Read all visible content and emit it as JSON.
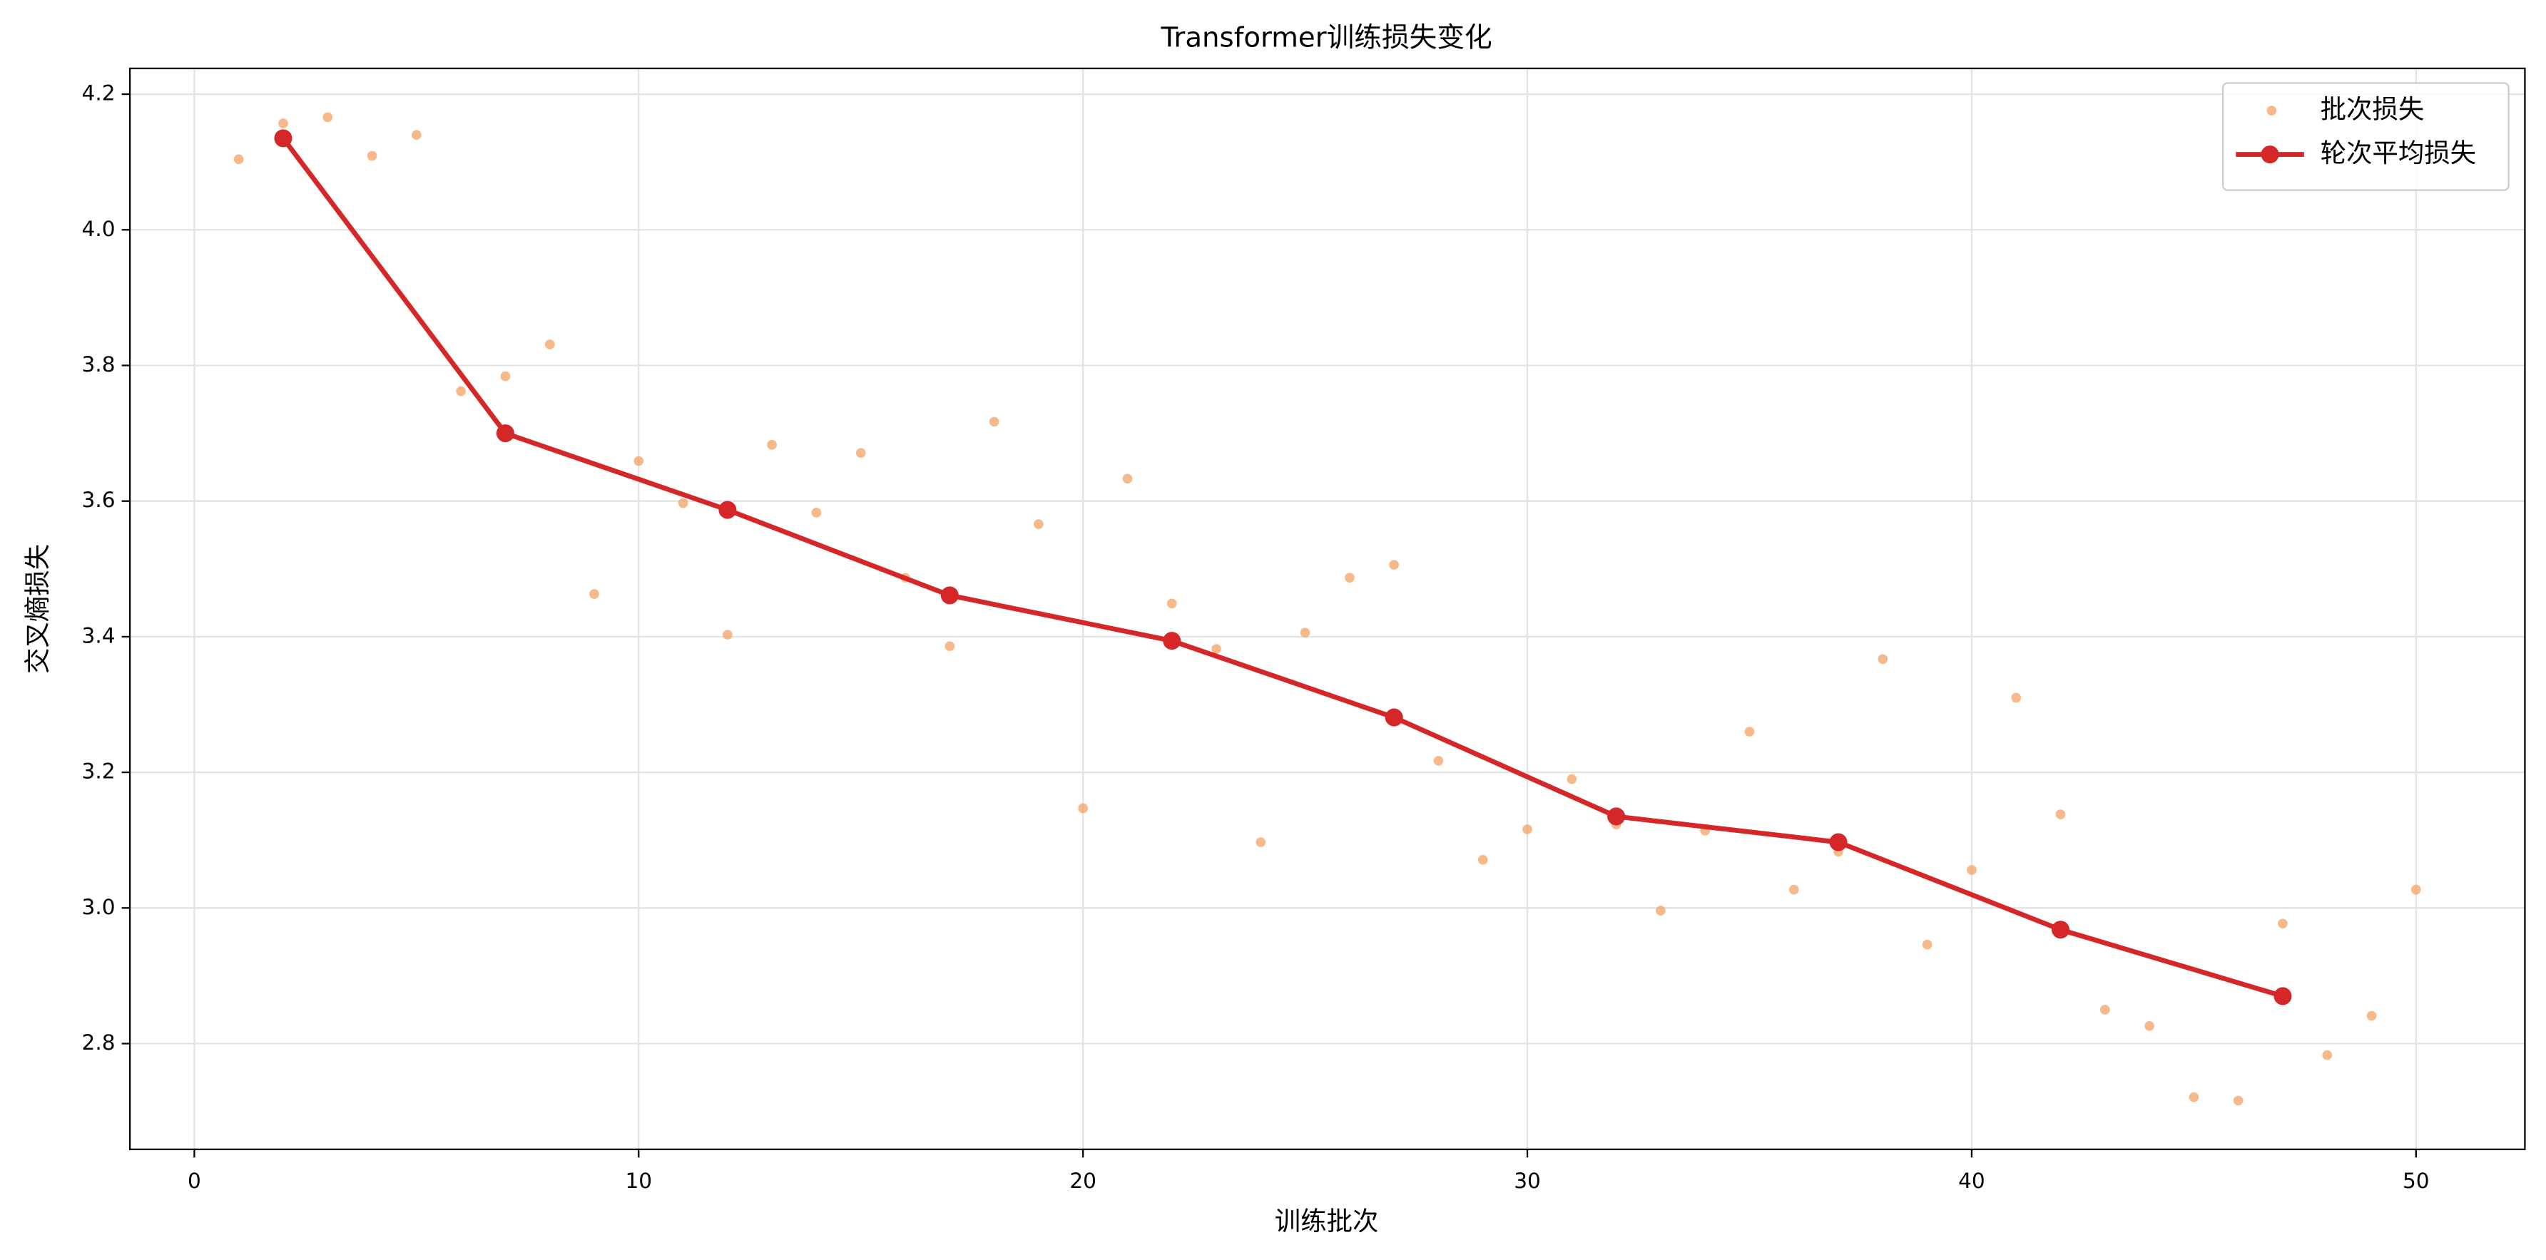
{
  "chart_data": {
    "type": "line",
    "title": "Transformer训练损失变化",
    "xlabel": "训练批次",
    "ylabel": "交叉熵损失",
    "xlim": [
      -1.45,
      52.45
    ],
    "xticks": [
      0,
      10,
      20,
      30,
      40,
      50
    ],
    "ylim": [
      2.644,
      4.238
    ],
    "yticks": [
      {
        "value": 2.8,
        "label": "2.8"
      },
      {
        "value": 3.0,
        "label": "3.0"
      },
      {
        "value": 3.2,
        "label": "3.2"
      },
      {
        "value": 3.4,
        "label": "3.4"
      },
      {
        "value": 3.6,
        "label": "3.6"
      },
      {
        "value": 3.8,
        "label": "3.8"
      },
      {
        "value": 4.0,
        "label": "4.0"
      },
      {
        "value": 4.2,
        "label": "4.2"
      }
    ],
    "grid": true,
    "legend": "upper right",
    "series": [
      {
        "name": "批次损失",
        "type": "scatter",
        "color": "#f4a261",
        "x": [
          1,
          2,
          3,
          4,
          5,
          6,
          7,
          8,
          9,
          10,
          11,
          12,
          13,
          14,
          15,
          16,
          17,
          18,
          19,
          20,
          21,
          22,
          23,
          24,
          25,
          26,
          27,
          28,
          29,
          30,
          31,
          32,
          33,
          34,
          35,
          36,
          37,
          38,
          39,
          40,
          41,
          42,
          43,
          44,
          45,
          46,
          47,
          48,
          49,
          50
        ],
        "values": [
          4.104,
          4.157,
          4.166,
          4.109,
          4.14,
          3.762,
          3.784,
          3.831,
          3.463,
          3.659,
          3.597,
          3.403,
          3.683,
          3.583,
          3.671,
          3.487,
          3.386,
          3.717,
          3.566,
          3.147,
          3.633,
          3.449,
          3.382,
          3.097,
          3.406,
          3.487,
          3.506,
          3.217,
          3.071,
          3.116,
          3.19,
          3.123,
          2.996,
          3.114,
          3.26,
          3.027,
          3.083,
          3.367,
          2.946,
          3.056,
          3.31,
          3.138,
          2.85,
          2.826,
          2.721,
          2.716,
          2.977,
          2.783,
          2.841,
          3.027
        ]
      },
      {
        "name": "轮次平均损失",
        "type": "line",
        "color": "#d62728",
        "x": [
          2,
          7,
          12,
          17,
          22,
          27,
          32,
          37,
          42,
          47
        ],
        "values": [
          4.135,
          3.7,
          3.587,
          3.461,
          3.394,
          3.281,
          3.135,
          3.097,
          2.968,
          2.87
        ]
      }
    ]
  }
}
